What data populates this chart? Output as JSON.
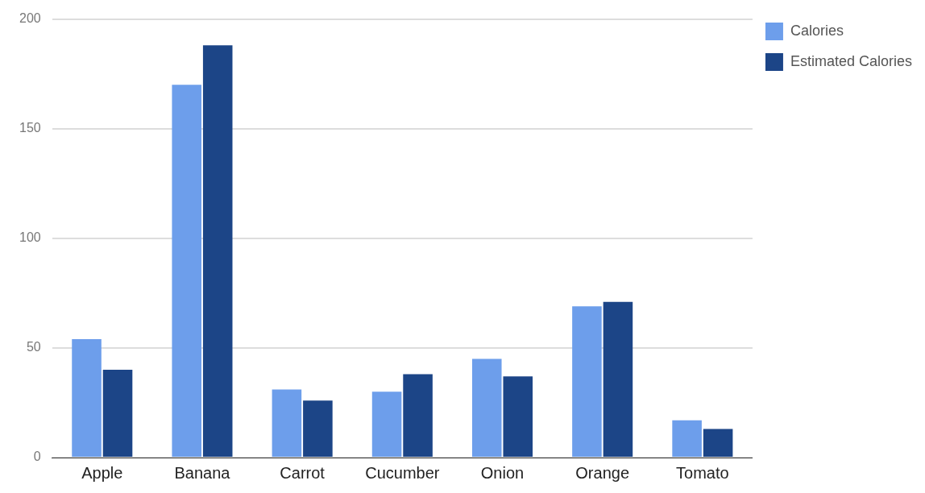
{
  "chart_data": {
    "type": "bar",
    "categories": [
      "Apple",
      "Banana",
      "Carrot",
      "Cucumber",
      "Onion",
      "Orange",
      "Tomato"
    ],
    "series": [
      {
        "name": "Calories",
        "color": "#6d9eeb",
        "values": [
          54,
          170,
          31,
          30,
          45,
          69,
          17
        ]
      },
      {
        "name": "Estimated Calories",
        "color": "#1c4587",
        "values": [
          40,
          188,
          26,
          38,
          37,
          71,
          13
        ]
      }
    ],
    "ylim": [
      0,
      200
    ],
    "yticks": [
      0,
      50,
      100,
      150,
      200
    ],
    "grid": "y",
    "legend": "right"
  }
}
